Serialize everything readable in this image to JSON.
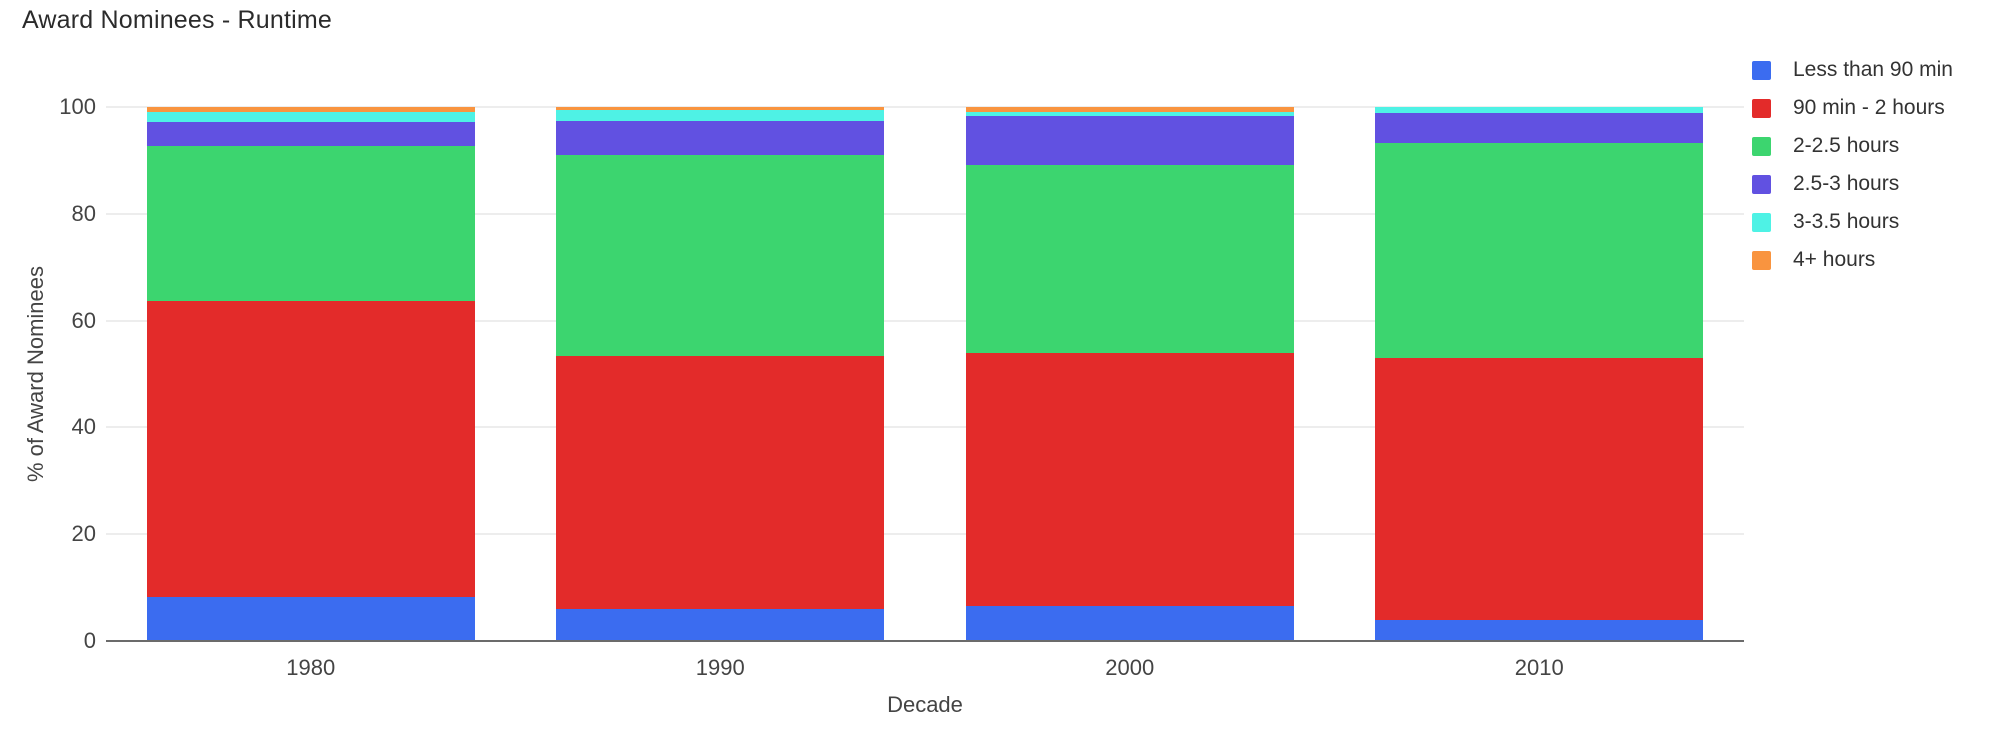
{
  "chart_data": {
    "type": "bar",
    "stacked": true,
    "orientation": "vertical",
    "title": "Award Nominees - Runtime",
    "xlabel": "Decade",
    "ylabel": "% of Award Nominees",
    "ylim": [
      0,
      100
    ],
    "yticks": [
      0,
      20,
      40,
      60,
      80,
      100
    ],
    "categories": [
      "1980",
      "1990",
      "2000",
      "2010"
    ],
    "series": [
      {
        "name": "Less than 90 min",
        "color": "#3b6cf0",
        "values": [
          8.3,
          6.0,
          6.6,
          4.0
        ]
      },
      {
        "name": "90 min - 2 hours",
        "color": "#e32b2a",
        "values": [
          55.3,
          47.4,
          47.3,
          49.0
        ]
      },
      {
        "name": "2-2.5 hours",
        "color": "#3cd56f",
        "values": [
          29.1,
          37.7,
          35.2,
          40.2
        ]
      },
      {
        "name": "2.5-3 hours",
        "color": "#6151e1",
        "values": [
          4.5,
          6.3,
          9.3,
          5.6
        ]
      },
      {
        "name": "3-3.5 hours",
        "color": "#4ef2e5",
        "values": [
          1.9,
          2.1,
          0.7,
          1.2
        ]
      },
      {
        "name": "4+ hours",
        "color": "#f9943f",
        "values": [
          0.9,
          0.5,
          0.9,
          0.0
        ]
      }
    ],
    "legend_position": "top-right",
    "grid": true,
    "colors": {
      "grid_line": "#ededed",
      "axis_line": "#6b6b6b",
      "tick_label": "#444444",
      "title_text": "#2b2b2b",
      "background": "#ffffff"
    }
  }
}
